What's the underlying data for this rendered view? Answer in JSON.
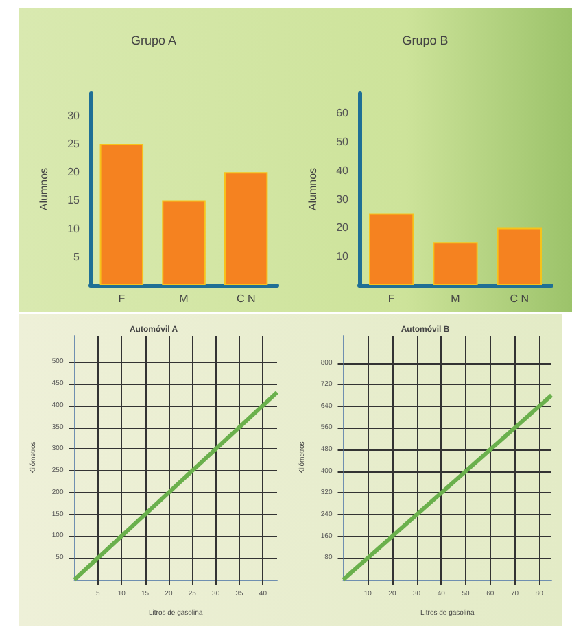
{
  "chart_data": [
    {
      "type": "bar",
      "title": "Grupo A",
      "ylabel": "Alumnos",
      "categories": [
        "F",
        "M",
        "C N"
      ],
      "values": [
        25,
        15,
        20
      ],
      "color": "#f58220",
      "ylim": [
        0,
        34
      ],
      "yticks": [
        5,
        10,
        15,
        20,
        25,
        30
      ],
      "grid": false
    },
    {
      "type": "bar",
      "title": "Grupo B",
      "ylabel": "Alumnos",
      "categories": [
        "F",
        "M",
        "C N"
      ],
      "values": [
        25,
        15,
        20
      ],
      "color": "#f58220",
      "ylim": [
        0,
        67
      ],
      "yticks": [
        10,
        20,
        30,
        40,
        50,
        60
      ],
      "grid": false
    },
    {
      "type": "line",
      "title": "Automóvil A",
      "xlabel": "Litros de gasolina",
      "ylabel": "Kilómetros",
      "x": [
        0,
        43
      ],
      "values": [
        0,
        430
      ],
      "color": "#6ab04c",
      "xlim": [
        0,
        43
      ],
      "ylim": [
        0,
        560
      ],
      "xticks": [
        5,
        10,
        15,
        20,
        25,
        30,
        35,
        40
      ],
      "yticks": [
        50,
        100,
        150,
        200,
        250,
        300,
        350,
        400,
        450,
        500
      ],
      "grid": true,
      "marker": "none"
    },
    {
      "type": "line",
      "title": "Automóvil B",
      "xlabel": "Litros de gasolina",
      "ylabel": "Kilómetros",
      "x": [
        0,
        85
      ],
      "values": [
        0,
        680
      ],
      "color": "#6ab04c",
      "xlim": [
        0,
        85
      ],
      "ylim": [
        0,
        900
      ],
      "xticks": [
        10,
        20,
        30,
        40,
        50,
        60,
        70,
        80
      ],
      "yticks": [
        80,
        160,
        240,
        320,
        400,
        480,
        560,
        640,
        720,
        800
      ],
      "grid": true,
      "marker": "none"
    }
  ]
}
